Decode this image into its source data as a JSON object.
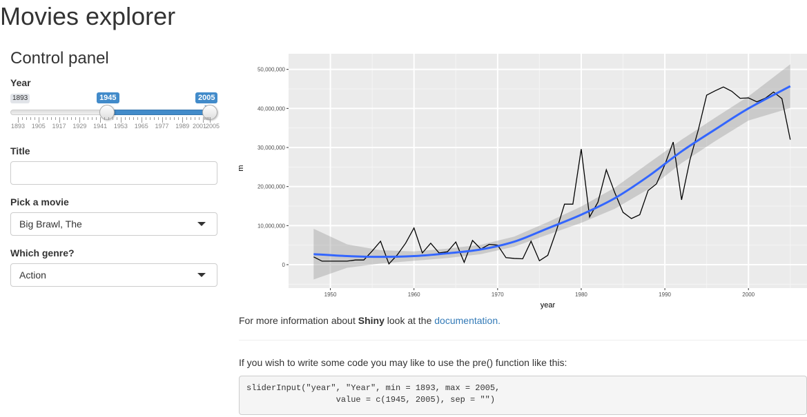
{
  "app": {
    "title": "Movies explorer"
  },
  "control_panel": {
    "title": "Control panel",
    "year": {
      "label": "Year",
      "min": 1893,
      "max": 2005,
      "from": 1945,
      "to": 2005,
      "min_label": "1893",
      "from_label": "1945",
      "to_label": "2005",
      "tick_labels": [
        "1893",
        "1905",
        "1917",
        "1929",
        "1941",
        "1953",
        "1965",
        "1977",
        "1989",
        "2001",
        "2005"
      ]
    },
    "title_field": {
      "label": "Title",
      "value": ""
    },
    "movie": {
      "label": "Pick a movie",
      "selected": "Big Brawl, The"
    },
    "genre": {
      "label": "Which genre?",
      "selected": "Action"
    }
  },
  "main": {
    "info_prefix": "For more information about ",
    "info_bold": "Shiny",
    "info_middle": " look at the ",
    "info_link": "documentation.",
    "code_intro": "If you wish to write some code you may like to use the pre() function like this:",
    "code": "sliderInput(\"year\", \"Year\", min = 1893, max = 2005,\n                  value = c(1945, 2005), sep = \"\")"
  },
  "chart_data": {
    "type": "line",
    "title": "",
    "xlabel": "year",
    "ylabel": "m",
    "xlim": [
      1945,
      2007
    ],
    "ylim": [
      -6000000,
      54000000
    ],
    "x_ticks": [
      1950,
      1960,
      1970,
      1980,
      1990,
      2000
    ],
    "x_tick_labels": [
      "1950",
      "1960",
      "1970",
      "1980",
      "1990",
      "2000"
    ],
    "y_ticks": [
      0,
      10000000,
      20000000,
      30000000,
      40000000,
      50000000
    ],
    "y_tick_labels": [
      "0",
      "10,000,000",
      "20,000,000",
      "30,000,000",
      "40,000,000",
      "50,000,000"
    ],
    "grid": true,
    "background": "#ebebeb",
    "series": [
      {
        "kind": "raw",
        "color": "#000000",
        "x": [
          1948,
          1949,
          1950,
          1951,
          1952,
          1953,
          1954,
          1955,
          1956,
          1957,
          1958,
          1959,
          1960,
          1961,
          1962,
          1963,
          1964,
          1965,
          1966,
          1967,
          1968,
          1969,
          1970,
          1971,
          1972,
          1973,
          1974,
          1975,
          1976,
          1977,
          1978,
          1979,
          1980,
          1981,
          1982,
          1983,
          1984,
          1985,
          1986,
          1987,
          1988,
          1989,
          1990,
          1991,
          1992,
          1993,
          1994,
          1995,
          1996,
          1997,
          1998,
          1999,
          2000,
          2001,
          2002,
          2003,
          2004,
          2005
        ],
        "y": [
          2000000,
          900000,
          900000,
          900000,
          900000,
          1200000,
          1200000,
          3500000,
          6000000,
          200000,
          2500000,
          5500000,
          9400000,
          3000000,
          5500000,
          3000000,
          3300000,
          5800000,
          600000,
          6200000,
          4000000,
          5200000,
          5000000,
          1800000,
          1600000,
          1500000,
          6000000,
          1000000,
          2400000,
          8500000,
          15500000,
          15500000,
          29600000,
          12200000,
          16000000,
          24300000,
          18500000,
          13400000,
          11800000,
          12800000,
          19000000,
          20700000,
          25600000,
          31400000,
          16600000,
          26800000,
          34500000,
          43400000,
          44500000,
          45500000,
          44400000,
          42600000,
          42700000,
          41700000,
          42600000,
          44200000,
          42500000,
          32000000
        ]
      },
      {
        "kind": "smooth",
        "color": "#3366ff",
        "x": [
          1948,
          1952,
          1956,
          1960,
          1964,
          1968,
          1972,
          1976,
          1980,
          1984,
          1988,
          1992,
          1996,
          2000,
          2005
        ],
        "y": [
          2700000,
          2200000,
          2000000,
          2200000,
          2900000,
          3900000,
          5900000,
          9300000,
          12800000,
          17000000,
          22600000,
          29000000,
          34600000,
          40000000,
          45700000
        ],
        "upper": [
          9200000,
          5200000,
          3700000,
          3400000,
          4100000,
          5100000,
          7200000,
          10900000,
          14900000,
          19700000,
          25900000,
          32000000,
          37600000,
          43100000,
          51300000
        ],
        "lower": [
          -3800000,
          -800000,
          300000,
          1000000,
          1700000,
          2700000,
          4600000,
          7700000,
          10700000,
          14300000,
          19300000,
          26000000,
          31600000,
          36900000,
          40100000
        ]
      }
    ]
  }
}
